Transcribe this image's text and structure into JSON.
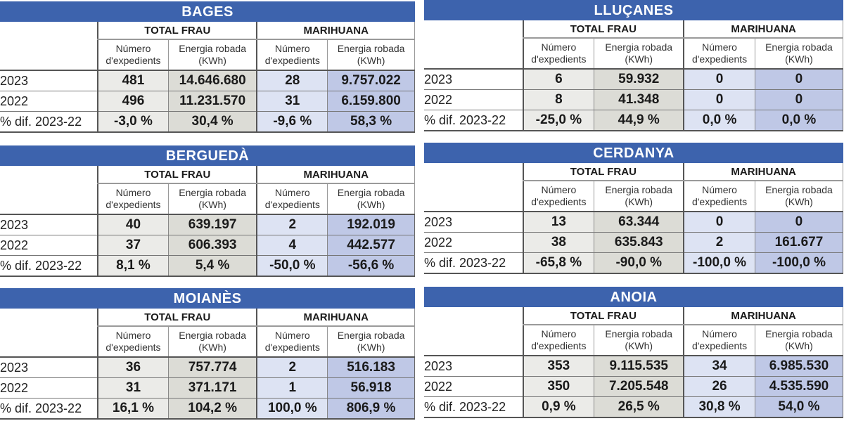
{
  "columns": {
    "group_total": "TOTAL FRAU",
    "group_marihuana": "MARIHUANA",
    "num_l1": "Número",
    "num_l2": "d'expedients",
    "energy_l1": "Energia robada",
    "energy_l2": "(KWh)"
  },
  "colors": {
    "title_bar": "#3d63ad",
    "total_num_bg": "#ebebe8",
    "total_energy_bg": "#dcdcd6",
    "marihuana_num_bg": "#dde3f3",
    "marihuana_energy_bg": "#bfc8e6"
  },
  "panels": [
    {
      "title": "BAGES",
      "rows": [
        {
          "label": "2023",
          "total_num": "481",
          "total_energy": "14.646.680",
          "mar_num": "28",
          "mar_energy": "9.757.022"
        },
        {
          "label": "2022",
          "total_num": "496",
          "total_energy": "11.231.570",
          "mar_num": "31",
          "mar_energy": "6.159.800"
        },
        {
          "label": "% dif. 2023-22",
          "total_num": "-3,0 %",
          "total_energy": "30,4 %",
          "mar_num": "-9,6 %",
          "mar_energy": "58,3 %"
        }
      ]
    },
    {
      "title": "LLUÇANES",
      "rows": [
        {
          "label": "2023",
          "total_num": "6",
          "total_energy": "59.932",
          "mar_num": "0",
          "mar_energy": "0"
        },
        {
          "label": "2022",
          "total_num": "8",
          "total_energy": "41.348",
          "mar_num": "0",
          "mar_energy": "0"
        },
        {
          "label": "% dif. 2023-22",
          "total_num": "-25,0 %",
          "total_energy": "44,9 %",
          "mar_num": "0,0 %",
          "mar_energy": "0,0 %"
        }
      ]
    },
    {
      "title": "BERGUEDÀ",
      "rows": [
        {
          "label": "2023",
          "total_num": "40",
          "total_energy": "639.197",
          "mar_num": "2",
          "mar_energy": "192.019"
        },
        {
          "label": "2022",
          "total_num": "37",
          "total_energy": "606.393",
          "mar_num": "4",
          "mar_energy": "442.577"
        },
        {
          "label": "% dif. 2023-22",
          "total_num": "8,1 %",
          "total_energy": "5,4 %",
          "mar_num": "-50,0 %",
          "mar_energy": "-56,6 %"
        }
      ]
    },
    {
      "title": "CERDANYA",
      "rows": [
        {
          "label": "2023",
          "total_num": "13",
          "total_energy": "63.344",
          "mar_num": "0",
          "mar_energy": "0"
        },
        {
          "label": "2022",
          "total_num": "38",
          "total_energy": "635.843",
          "mar_num": "2",
          "mar_energy": "161.677"
        },
        {
          "label": "% dif. 2023-22",
          "total_num": "-65,8 %",
          "total_energy": "-90,0 %",
          "mar_num": "-100,0 %",
          "mar_energy": "-100,0 %"
        }
      ]
    },
    {
      "title": "MOIANÈS",
      "rows": [
        {
          "label": "2023",
          "total_num": "36",
          "total_energy": "757.774",
          "mar_num": "2",
          "mar_energy": "516.183"
        },
        {
          "label": "2022",
          "total_num": "31",
          "total_energy": "371.171",
          "mar_num": "1",
          "mar_energy": "56.918"
        },
        {
          "label": "% dif. 2023-22",
          "total_num": "16,1 %",
          "total_energy": "104,2 %",
          "mar_num": "100,0 %",
          "mar_energy": "806,9 %"
        }
      ]
    },
    {
      "title": "ANOIA",
      "rows": [
        {
          "label": "2023",
          "total_num": "353",
          "total_energy": "9.115.535",
          "mar_num": "34",
          "mar_energy": "6.985.530"
        },
        {
          "label": "2022",
          "total_num": "350",
          "total_energy": "7.205.548",
          "mar_num": "26",
          "mar_energy": "4.535.590"
        },
        {
          "label": "% dif. 2023-22",
          "total_num": "0,9 %",
          "total_energy": "26,5 %",
          "mar_num": "30,8 %",
          "mar_energy": "54,0 %"
        }
      ]
    }
  ],
  "chart_data": [
    {
      "type": "table",
      "title": "BAGES",
      "columns": [
        "",
        "TOTAL FRAU - Número d'expedients",
        "TOTAL FRAU - Energia robada (KWh)",
        "MARIHUANA - Número d'expedients",
        "MARIHUANA - Energia robada (KWh)"
      ],
      "rows": [
        [
          "2023",
          481,
          14646680,
          28,
          9757022
        ],
        [
          "2022",
          496,
          11231570,
          31,
          6159800
        ],
        [
          "% dif. 2023-22",
          -3.0,
          30.4,
          -9.6,
          58.3
        ]
      ]
    },
    {
      "type": "table",
      "title": "LLUÇANES",
      "columns": [
        "",
        "TOTAL FRAU - Número d'expedients",
        "TOTAL FRAU - Energia robada (KWh)",
        "MARIHUANA - Número d'expedients",
        "MARIHUANA - Energia robada (KWh)"
      ],
      "rows": [
        [
          "2023",
          6,
          59932,
          0,
          0
        ],
        [
          "2022",
          8,
          41348,
          0,
          0
        ],
        [
          "% dif. 2023-22",
          -25.0,
          44.9,
          0.0,
          0.0
        ]
      ]
    },
    {
      "type": "table",
      "title": "BERGUEDÀ",
      "columns": [
        "",
        "TOTAL FRAU - Número d'expedients",
        "TOTAL FRAU - Energia robada (KWh)",
        "MARIHUANA - Número d'expedients",
        "MARIHUANA - Energia robada (KWh)"
      ],
      "rows": [
        [
          "2023",
          40,
          639197,
          2,
          192019
        ],
        [
          "2022",
          37,
          606393,
          4,
          442577
        ],
        [
          "% dif. 2023-22",
          8.1,
          5.4,
          -50.0,
          -56.6
        ]
      ]
    },
    {
      "type": "table",
      "title": "CERDANYA",
      "columns": [
        "",
        "TOTAL FRAU - Número d'expedients",
        "TOTAL FRAU - Energia robada (KWh)",
        "MARIHUANA - Número d'expedients",
        "MARIHUANA - Energia robada (KWh)"
      ],
      "rows": [
        [
          "2023",
          13,
          63344,
          0,
          0
        ],
        [
          "2022",
          38,
          635843,
          2,
          161677
        ],
        [
          "% dif. 2023-22",
          -65.8,
          -90.0,
          -100.0,
          -100.0
        ]
      ]
    },
    {
      "type": "table",
      "title": "MOIANÈS",
      "columns": [
        "",
        "TOTAL FRAU - Número d'expedients",
        "TOTAL FRAU - Energia robada (KWh)",
        "MARIHUANA - Número d'expedients",
        "MARIHUANA - Energia robada (KWh)"
      ],
      "rows": [
        [
          "2023",
          36,
          757774,
          2,
          516183
        ],
        [
          "2022",
          31,
          371171,
          1,
          56918
        ],
        [
          "% dif. 2023-22",
          16.1,
          104.2,
          100.0,
          806.9
        ]
      ]
    },
    {
      "type": "table",
      "title": "ANOIA",
      "columns": [
        "",
        "TOTAL FRAU - Número d'expedients",
        "TOTAL FRAU - Energia robada (KWh)",
        "MARIHUANA - Número d'expedients",
        "MARIHUANA - Energia robada (KWh)"
      ],
      "rows": [
        [
          "2023",
          353,
          9115535,
          34,
          6985530
        ],
        [
          "2022",
          350,
          7205548,
          26,
          4535590
        ],
        [
          "% dif. 2023-22",
          0.9,
          26.5,
          30.8,
          54.0
        ]
      ]
    }
  ]
}
